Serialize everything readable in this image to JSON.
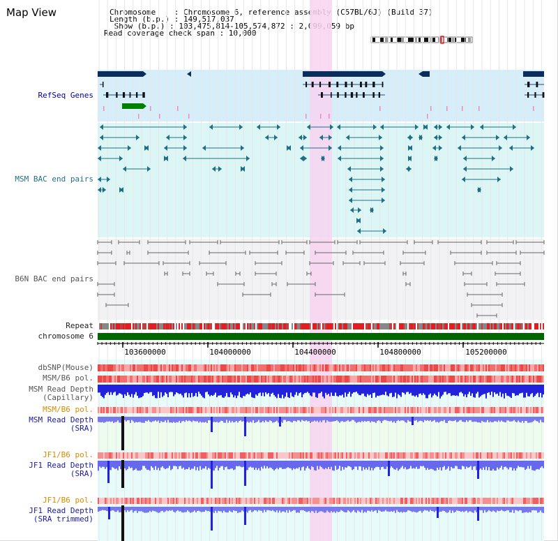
{
  "page": {
    "title": "Map View"
  },
  "info": {
    "line1": "Chromosome    : Chromosome 6, reference assembly (C57BL/6J) (Build 37)",
    "line2": "Length (b.p.) : 149,517,037",
    "line3": " Show (b.p.) : 103,475,814-105,574,872 : 2,099,059 bp",
    "line4": "Read coverage check span : 10,000"
  },
  "tracks": {
    "refseq": "RefSeq Genes",
    "msm_bac": "MSM BAC end pairs",
    "b6n_bac": "B6N BAC end pairs",
    "repeat": "Repeat",
    "chromosome": "chromosome 6",
    "dbsnp": "dbSNP(Mouse)",
    "msm_b6_pol": "MSM/B6 pol.",
    "msm_rd_cap1": "MSM Read Depth",
    "msm_rd_cap2": "(Capillary)",
    "msm_b6_pol2": "MSM/B6 pol.",
    "msm_rd_sra1": "MSM Read Depth",
    "msm_rd_sra2": "(SRA)",
    "jf1_b6_pol": "JF1/B6 pol.",
    "jf1_rd_sra1": "JF1 Read Depth",
    "jf1_rd_sra2": "(SRA)",
    "jf1_b6_pol2": "JF1/B6 pol.",
    "jf1_rd_trim1": "JF1 Read Depth",
    "jf1_rd_trim2": "(SRA trimmed)"
  },
  "axis": {
    "ticks": [
      "103600000",
      "104000000",
      "104400000",
      "104800000",
      "105200000"
    ]
  },
  "colors": {
    "refseq_bg": "#d6eefa",
    "msm_bg": "#dcf6f6",
    "b6n_bg": "#f2f2f4",
    "highlight": "#f7d4f0",
    "chromosome": "#006600",
    "gene_dark": "#0b2d5c",
    "gene_green": "#008000",
    "depth_blue": "#2222dd",
    "depth_light": "#7777ee"
  }
}
